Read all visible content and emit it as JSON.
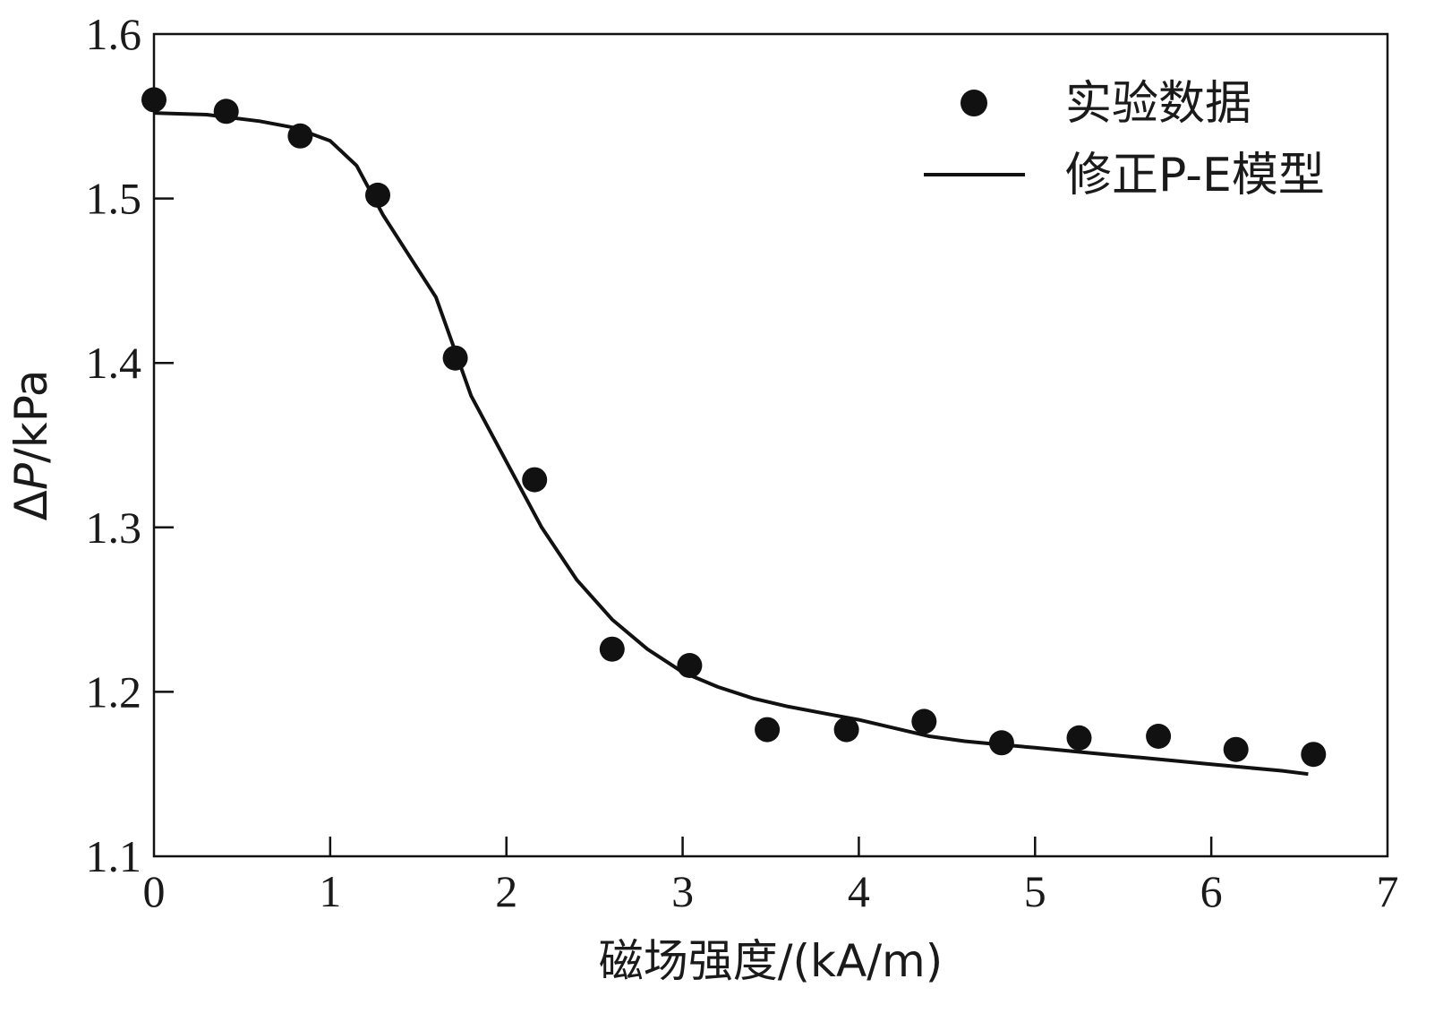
{
  "chart_data": {
    "type": "scatter",
    "title": "",
    "xlabel": "磁场强度/(kA/m)",
    "ylabel": "ΔP/kPa",
    "ylabel_parts": {
      "delta": "Δ",
      "symbol": "P",
      "unit": "/kPa"
    },
    "xlim": [
      0,
      7
    ],
    "ylim": [
      1.1,
      1.6
    ],
    "x_ticks": [
      "0",
      "1",
      "2",
      "3",
      "4",
      "5",
      "6",
      "7"
    ],
    "y_ticks": [
      "1.1",
      "1.2",
      "1.3",
      "1.4",
      "1.5",
      "1.6"
    ],
    "grid": false,
    "legend_position": "top-right",
    "series": [
      {
        "name": "实验数据",
        "kind": "scatter",
        "color": "#111111",
        "x": [
          0,
          0.41,
          0.83,
          1.27,
          1.71,
          2.16,
          2.6,
          3.04,
          3.48,
          3.93,
          4.37,
          4.81,
          5.25,
          5.7,
          6.14,
          6.58
        ],
        "y": [
          1.56,
          1.553,
          1.538,
          1.502,
          1.403,
          1.329,
          1.226,
          1.216,
          1.177,
          1.177,
          1.182,
          1.169,
          1.172,
          1.173,
          1.165,
          1.162
        ]
      },
      {
        "name": "修正P-E模型",
        "kind": "line",
        "color": "#111111",
        "x": [
          0,
          0.3,
          0.6,
          0.8,
          1.0,
          1.15,
          1.3,
          1.45,
          1.6,
          1.8,
          2.0,
          2.2,
          2.4,
          2.6,
          2.8,
          3.0,
          3.2,
          3.4,
          3.6,
          3.8,
          4.0,
          4.2,
          4.4,
          4.6,
          4.8,
          5.0,
          5.2,
          5.4,
          5.6,
          5.8,
          6.0,
          6.2,
          6.4,
          6.55
        ],
        "y": [
          1.552,
          1.551,
          1.547,
          1.543,
          1.535,
          1.52,
          1.49,
          1.465,
          1.44,
          1.38,
          1.34,
          1.3,
          1.268,
          1.244,
          1.226,
          1.212,
          1.203,
          1.196,
          1.191,
          1.187,
          1.183,
          1.178,
          1.173,
          1.17,
          1.168,
          1.166,
          1.164,
          1.162,
          1.16,
          1.158,
          1.156,
          1.154,
          1.152,
          1.15
        ]
      }
    ]
  }
}
